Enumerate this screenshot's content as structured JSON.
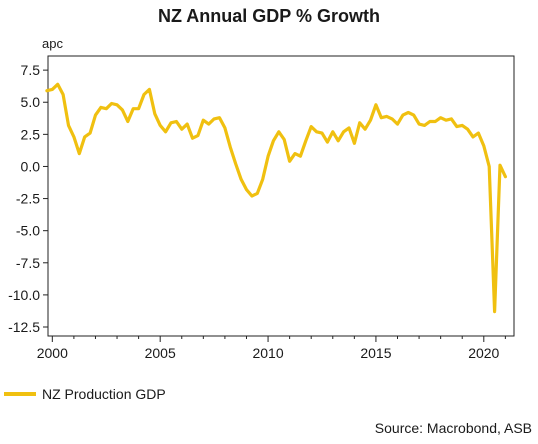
{
  "chart_data": {
    "type": "line",
    "title": "NZ Annual GDP % Growth",
    "xlabel": "",
    "ylabel": "apc",
    "xlim": [
      1999.8,
      2021.4
    ],
    "ylim": [
      -13.2,
      8.6
    ],
    "grid": false,
    "legend_position": "bottom-left",
    "x_ticks": [
      2000,
      2005,
      2010,
      2015,
      2020
    ],
    "x_tick_labels": [
      "2000",
      "2005",
      "2010",
      "2015",
      "2020"
    ],
    "y_ticks": [
      7.5,
      5.0,
      2.5,
      0.0,
      -2.5,
      -5.0,
      -7.5,
      -10.0,
      -12.5
    ],
    "y_tick_labels": [
      "7.5",
      "5.0",
      "2.5",
      "0.0",
      "-2.5",
      "-5.0",
      "-7.5",
      "-10.0",
      "-12.5"
    ],
    "series": [
      {
        "name": "NZ Production GDP",
        "color": "#F0C010",
        "points": [
          [
            1999.75,
            5.9
          ],
          [
            2000.0,
            6.0
          ],
          [
            2000.25,
            6.4
          ],
          [
            2000.5,
            5.6
          ],
          [
            2000.75,
            3.2
          ],
          [
            2001.0,
            2.3
          ],
          [
            2001.25,
            1.0
          ],
          [
            2001.5,
            2.3
          ],
          [
            2001.75,
            2.6
          ],
          [
            2002.0,
            4.0
          ],
          [
            2002.25,
            4.6
          ],
          [
            2002.5,
            4.5
          ],
          [
            2002.75,
            4.9
          ],
          [
            2003.0,
            4.8
          ],
          [
            2003.25,
            4.4
          ],
          [
            2003.5,
            3.5
          ],
          [
            2003.75,
            4.5
          ],
          [
            2004.0,
            4.5
          ],
          [
            2004.25,
            5.6
          ],
          [
            2004.5,
            6.0
          ],
          [
            2004.75,
            4.1
          ],
          [
            2005.0,
            3.2
          ],
          [
            2005.25,
            2.7
          ],
          [
            2005.5,
            3.4
          ],
          [
            2005.75,
            3.5
          ],
          [
            2006.0,
            2.9
          ],
          [
            2006.25,
            3.3
          ],
          [
            2006.5,
            2.2
          ],
          [
            2006.75,
            2.4
          ],
          [
            2007.0,
            3.6
          ],
          [
            2007.25,
            3.3
          ],
          [
            2007.5,
            3.7
          ],
          [
            2007.75,
            3.8
          ],
          [
            2008.0,
            3.0
          ],
          [
            2008.25,
            1.5
          ],
          [
            2008.5,
            0.2
          ],
          [
            2008.75,
            -1.0
          ],
          [
            2009.0,
            -1.8
          ],
          [
            2009.25,
            -2.3
          ],
          [
            2009.5,
            -2.1
          ],
          [
            2009.75,
            -1.0
          ],
          [
            2010.0,
            0.8
          ],
          [
            2010.25,
            2.0
          ],
          [
            2010.5,
            2.7
          ],
          [
            2010.75,
            2.1
          ],
          [
            2011.0,
            0.4
          ],
          [
            2011.25,
            1.0
          ],
          [
            2011.5,
            0.8
          ],
          [
            2011.75,
            2.0
          ],
          [
            2012.0,
            3.1
          ],
          [
            2012.25,
            2.7
          ],
          [
            2012.5,
            2.6
          ],
          [
            2012.75,
            1.9
          ],
          [
            2013.0,
            2.7
          ],
          [
            2013.25,
            2.0
          ],
          [
            2013.5,
            2.7
          ],
          [
            2013.75,
            3.0
          ],
          [
            2014.0,
            1.8
          ],
          [
            2014.25,
            3.4
          ],
          [
            2014.5,
            2.9
          ],
          [
            2014.75,
            3.6
          ],
          [
            2015.0,
            4.8
          ],
          [
            2015.25,
            3.8
          ],
          [
            2015.5,
            3.9
          ],
          [
            2015.75,
            3.7
          ],
          [
            2016.0,
            3.3
          ],
          [
            2016.25,
            4.0
          ],
          [
            2016.5,
            4.2
          ],
          [
            2016.75,
            4.0
          ],
          [
            2017.0,
            3.3
          ],
          [
            2017.25,
            3.2
          ],
          [
            2017.5,
            3.5
          ],
          [
            2017.75,
            3.5
          ],
          [
            2018.0,
            3.8
          ],
          [
            2018.25,
            3.6
          ],
          [
            2018.5,
            3.7
          ],
          [
            2018.75,
            3.1
          ],
          [
            2019.0,
            3.2
          ],
          [
            2019.25,
            2.9
          ],
          [
            2019.5,
            2.3
          ],
          [
            2019.75,
            2.6
          ],
          [
            2020.0,
            1.6
          ],
          [
            2020.25,
            0.0
          ],
          [
            2020.5,
            -11.3
          ],
          [
            2020.75,
            0.1
          ],
          [
            2021.0,
            -0.8
          ]
        ]
      }
    ]
  },
  "legend": {
    "label": "NZ Production GDP",
    "color": "#F0C010"
  },
  "source": "Source: Macrobond, ASB"
}
